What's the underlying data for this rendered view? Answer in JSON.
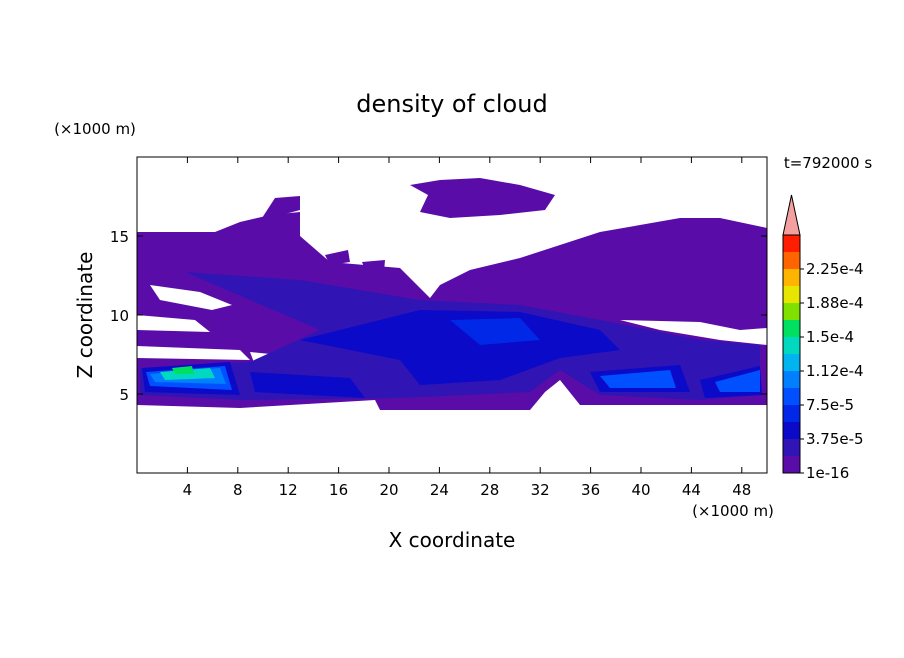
{
  "chart_data": {
    "type": "contour",
    "title": "density of cloud",
    "x_label": "X coordinate",
    "y_label": "Z coordinate",
    "x_unit": "(×1000 m)",
    "y_unit": "(×1000 m)",
    "annotation": "t=792000 s",
    "xlim": [
      0,
      50
    ],
    "ylim": [
      0,
      20
    ],
    "xticks": [
      4,
      8,
      12,
      16,
      20,
      24,
      28,
      32,
      36,
      40,
      44,
      48
    ],
    "yticks": [
      5,
      10,
      15
    ],
    "colorbar": {
      "ticks": [
        {
          "value": 1e-16,
          "label": "1e-16"
        },
        {
          "value": 3.75e-05,
          "label": "3.75e-5"
        },
        {
          "value": 7.5e-05,
          "label": "7.5e-5"
        },
        {
          "value": 0.000112,
          "label": "1.12e-4"
        },
        {
          "value": 0.00015,
          "label": "1.5e-4"
        },
        {
          "value": 0.000188,
          "label": "1.88e-4"
        },
        {
          "value": 0.000225,
          "label": "2.25e-4"
        }
      ],
      "colors": [
        "#5a0ca8",
        "#3014b4",
        "#0a0ac8",
        "#0028e6",
        "#0050ff",
        "#0080ff",
        "#00b4f0",
        "#00d8c0",
        "#00e060",
        "#80e000",
        "#e6e600",
        "#ffb400",
        "#ff6400",
        "#ff1e00"
      ],
      "extend_color": "#f4a0a0"
    }
  }
}
